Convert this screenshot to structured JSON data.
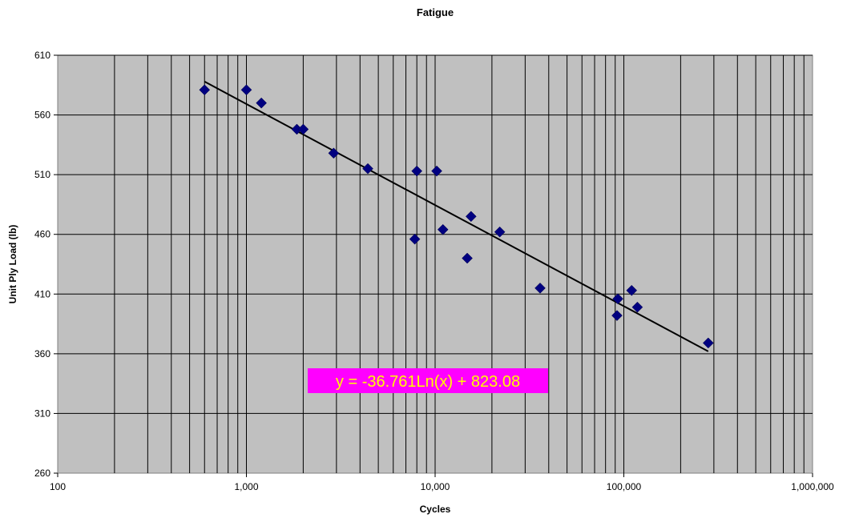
{
  "chart_data": {
    "type": "scatter",
    "title": "Fatigue",
    "xlabel": "Cycles",
    "ylabel": "Unit Ply Load (lb)",
    "x_scale": "log",
    "xlim": [
      100,
      1000000
    ],
    "ylim": [
      260,
      610
    ],
    "x_ticks": [
      "100",
      "1,000",
      "10,000",
      "100,000",
      "1,000,000"
    ],
    "y_ticks": [
      "260",
      "310",
      "360",
      "410",
      "460",
      "510",
      "560",
      "610"
    ],
    "grid": true,
    "plot_background": "#c0c0c0",
    "marker_color": "#000080",
    "series": [
      {
        "x": [
          600,
          1000,
          1200,
          1850,
          2000,
          2900,
          4400,
          7800,
          8000,
          10200,
          11000,
          14800,
          15500,
          22000,
          36000,
          92000,
          93000,
          110000,
          118000,
          280000
        ],
        "y": [
          581,
          581,
          570,
          548,
          548,
          528,
          515,
          456,
          513,
          513,
          464,
          440,
          475,
          462,
          415,
          392,
          406,
          413,
          399,
          369
        ]
      }
    ],
    "trendline": {
      "type": "logarithmic",
      "a": -36.761,
      "b": 823.08,
      "x_range": [
        600,
        280000
      ],
      "color": "#000000"
    },
    "equation_label": {
      "text": "y = -36.761Ln(x) + 823.08",
      "background": "#ff00ff",
      "color": "#ffff00"
    }
  }
}
